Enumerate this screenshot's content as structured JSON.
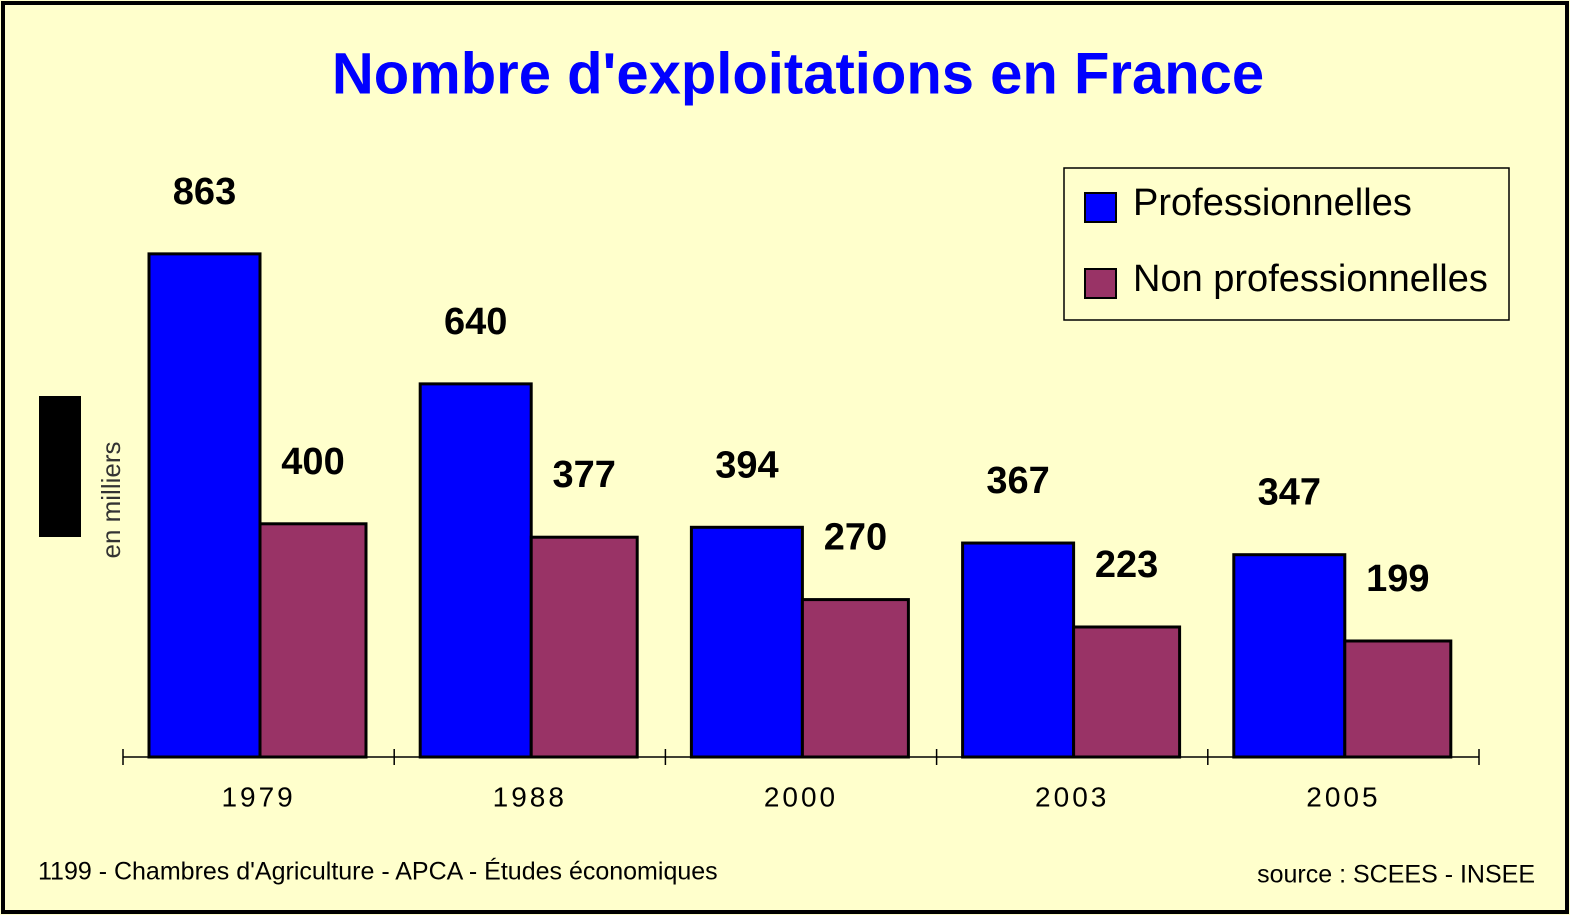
{
  "chart_data": {
    "type": "bar",
    "title": "Nombre d'exploitations en France",
    "y_label": "en milliers",
    "categories": [
      "1979",
      "1988",
      "2000",
      "2003",
      "2005"
    ],
    "series": [
      {
        "name": "Professionnelles",
        "color": "#0000ff",
        "values": [
          863,
          640,
          394,
          367,
          347
        ]
      },
      {
        "name": "Non professionnelles",
        "color": "#993366",
        "values": [
          400,
          377,
          270,
          223,
          199
        ]
      }
    ],
    "ylim": [
      0,
      1000
    ],
    "legend": "top-right",
    "footer_left": "1199 - Chambres d'Agriculture - APCA - Études économiques",
    "footer_right": "source : SCEES - INSEE"
  }
}
